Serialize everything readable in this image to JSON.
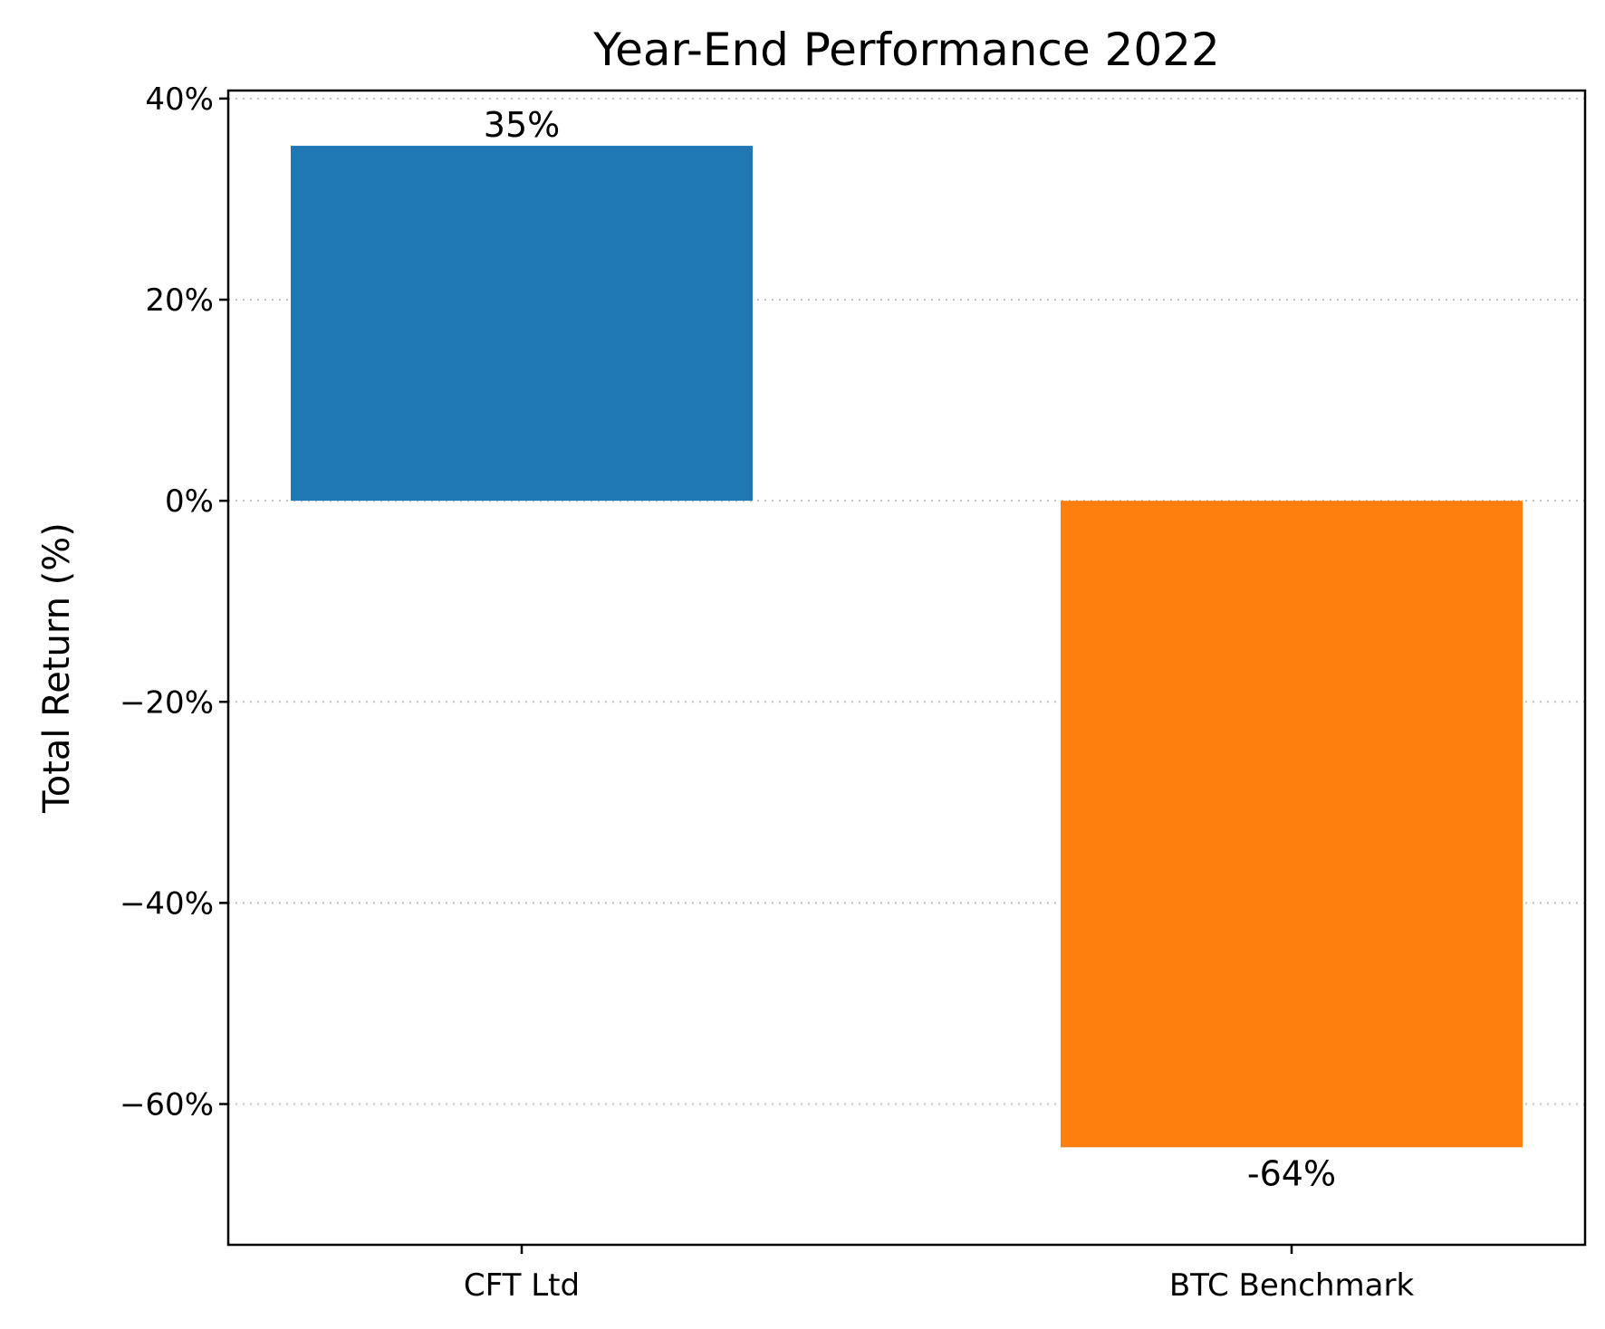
{
  "chart_data": {
    "type": "bar",
    "title": "Year-End Performance 2022",
    "xlabel": "",
    "ylabel": "Total Return (%)",
    "categories": [
      "CFT Ltd",
      "BTC Benchmark"
    ],
    "values": [
      35.3,
      -64.3
    ],
    "data_labels": [
      "35%",
      "-64%"
    ],
    "colors": [
      "#1f77b4",
      "#ff7f0e"
    ],
    "ylim": [
      -74,
      40.8
    ],
    "yticks": [
      40,
      20,
      0,
      -20,
      -40,
      -60
    ],
    "ytick_labels": [
      "40%",
      "20%",
      "0%",
      "−20%",
      "−40%",
      "−60%"
    ],
    "grid": "y dotted",
    "legend": "none"
  }
}
